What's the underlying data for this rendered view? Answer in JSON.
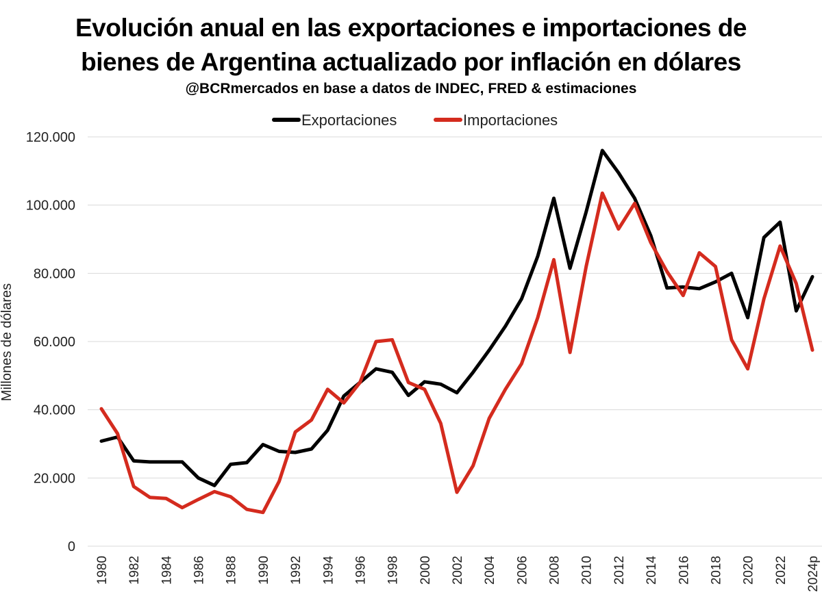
{
  "chart_data": {
    "type": "line",
    "title": "Evolución anual en las exportaciones e importaciones de",
    "title_line2": "bienes de Argentina actualizado por inflación en dólares",
    "subtitle": "@BCRmercados en base a datos de INDEC, FRED & estimaciones",
    "xlabel": "",
    "ylabel": "Millones de dólares",
    "ylim": [
      0,
      120000
    ],
    "yticks": [
      0,
      20000,
      40000,
      60000,
      80000,
      100000,
      120000
    ],
    "ytick_labels": [
      "0",
      "20.000",
      "40.000",
      "60.000",
      "80.000",
      "100.000",
      "120.000"
    ],
    "x": [
      "1980",
      "1981",
      "1982",
      "1983",
      "1984",
      "1985",
      "1986",
      "1987",
      "1988",
      "1989",
      "1990",
      "1991",
      "1992",
      "1993",
      "1994",
      "1995",
      "1996",
      "1997",
      "1998",
      "1999",
      "2000",
      "2001",
      "2002",
      "2003",
      "2004",
      "2005",
      "2006",
      "2007",
      "2008",
      "2009",
      "2010",
      "2011",
      "2012",
      "2013",
      "2014",
      "2015",
      "2016",
      "2017",
      "2018",
      "2019",
      "2020",
      "2021",
      "2022",
      "2023",
      "2024p"
    ],
    "xtick_labels": [
      "1980",
      "1982",
      "1984",
      "1986",
      "1988",
      "1990",
      "1992",
      "1994",
      "1996",
      "1998",
      "2000",
      "2002",
      "2004",
      "2006",
      "2008",
      "2010",
      "2012",
      "2014",
      "2016",
      "2018",
      "2020",
      "2022",
      "2024p"
    ],
    "grid": true,
    "legend": "top-center",
    "series": [
      {
        "name": "Exportaciones",
        "color": "#000000",
        "values": [
          30800,
          32000,
          25000,
          24700,
          24700,
          24700,
          20000,
          17800,
          24000,
          24500,
          29800,
          27800,
          27500,
          28500,
          34000,
          44000,
          48000,
          52000,
          51000,
          44200,
          48200,
          47500,
          45000,
          51000,
          57500,
          64500,
          72500,
          85000,
          102000,
          81500,
          98000,
          116000,
          109500,
          102000,
          91000,
          75700,
          76000,
          75500,
          77500,
          80000,
          67000,
          90500,
          95000,
          69000,
          79000
        ]
      },
      {
        "name": "Importaciones",
        "color": "#d42b1e",
        "values": [
          40300,
          33000,
          17500,
          14300,
          14000,
          11300,
          13700,
          16000,
          14500,
          10800,
          9900,
          19000,
          33500,
          37000,
          46000,
          42000,
          48000,
          60000,
          60500,
          48000,
          46000,
          36000,
          15800,
          23600,
          37500,
          46000,
          53500,
          67000,
          84000,
          56800,
          82000,
          103500,
          93000,
          100500,
          89000,
          80500,
          73500,
          86000,
          82000,
          60500,
          52000,
          72500,
          88000,
          77000,
          57500
        ]
      }
    ]
  }
}
